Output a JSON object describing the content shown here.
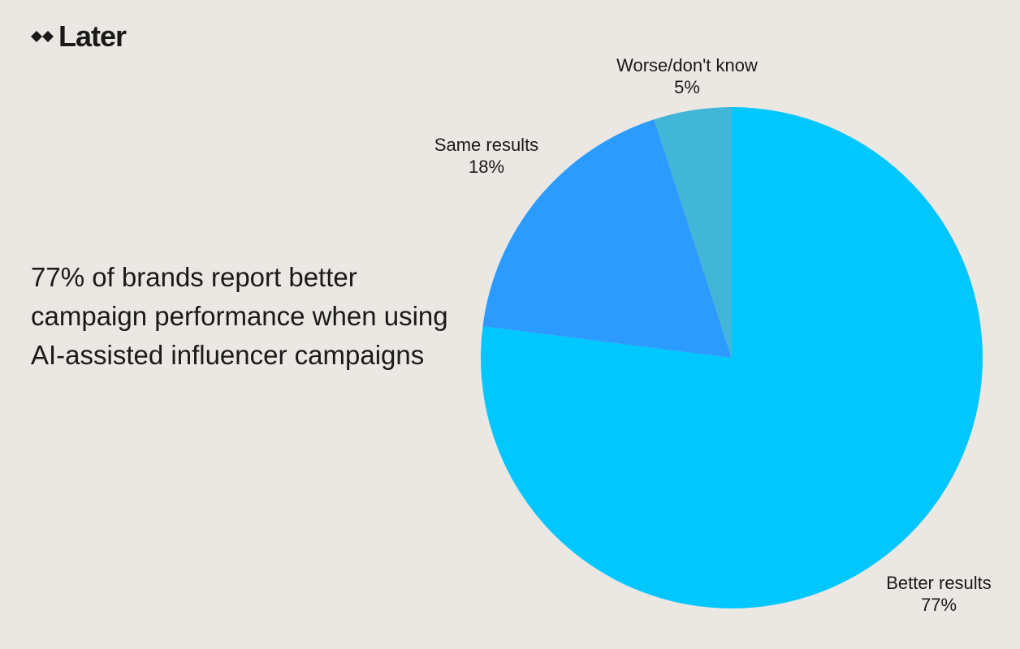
{
  "brand": {
    "logo_icon": "later-diamond-icon",
    "name": "Later"
  },
  "headline": "77% of brands report better campaign performance when using AI-assisted influencer campaigns",
  "chart_data": {
    "type": "pie",
    "title": "",
    "start_angle_deg": 0,
    "direction": "clockwise",
    "slices": [
      {
        "label": "Better results",
        "value": 77,
        "value_label": "77%",
        "color": "#00c7ff"
      },
      {
        "label": "Same results",
        "value": 18,
        "value_label": "18%",
        "color": "#2b9bff"
      },
      {
        "label": "Worse/don't know",
        "value": 5,
        "value_label": "5%",
        "color": "#42b6d6"
      }
    ]
  }
}
